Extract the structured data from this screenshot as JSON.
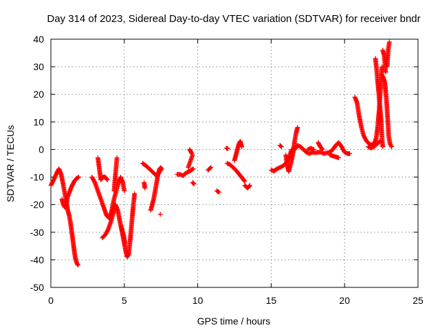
{
  "chart_data": {
    "type": "scatter",
    "title": "Day 314 of 2023, Sidereal Day-to-day VTEC variation (SDTVAR) for receiver bndr",
    "xlabel": "GPS time / hours",
    "ylabel": "SDTVAR / TECUs",
    "xlim": [
      0,
      25
    ],
    "ylim": [
      -50,
      40
    ],
    "xticks": [
      0,
      5,
      10,
      15,
      20,
      25
    ],
    "yticks": [
      -50,
      -40,
      -30,
      -20,
      -10,
      0,
      10,
      20,
      30,
      40
    ],
    "xtick_labels": [
      "0",
      "5",
      "10",
      "15",
      "20",
      "25"
    ],
    "ytick_labels": [
      "-50",
      "-40",
      "-30",
      "-20",
      "-10",
      "0",
      "10",
      "20",
      "30",
      "40"
    ],
    "grid": true,
    "marker": "plus",
    "color": "#ff0000",
    "series": [
      {
        "name": "bndr",
        "segments": [
          [
            [
              0.0,
              -13
            ],
            [
              0.2,
              -11
            ],
            [
              0.4,
              -8.5
            ],
            [
              0.55,
              -7
            ],
            [
              0.7,
              -9
            ],
            [
              0.85,
              -13
            ],
            [
              0.95,
              -16
            ],
            [
              1.05,
              -19
            ],
            [
              1.15,
              -22
            ],
            [
              1.25,
              -24
            ],
            [
              1.35,
              -27
            ],
            [
              1.45,
              -31
            ],
            [
              1.55,
              -35
            ],
            [
              1.65,
              -39
            ],
            [
              1.75,
              -41
            ],
            [
              1.85,
              -42
            ]
          ],
          [
            [
              0.75,
              -18
            ],
            [
              0.85,
              -20
            ],
            [
              0.95,
              -21
            ],
            [
              1.05,
              -20
            ],
            [
              1.15,
              -17
            ],
            [
              1.3,
              -15
            ],
            [
              1.45,
              -13
            ],
            [
              1.6,
              -11.5
            ],
            [
              1.75,
              -10.5
            ],
            [
              1.9,
              -10
            ]
          ],
          [
            [
              2.8,
              -10
            ],
            [
              3.0,
              -12
            ],
            [
              3.2,
              -15
            ],
            [
              3.4,
              -18
            ],
            [
              3.6,
              -21
            ],
            [
              3.8,
              -24
            ],
            [
              4.0,
              -25
            ],
            [
              4.15,
              -22
            ],
            [
              4.3,
              -18
            ],
            [
              4.45,
              -15
            ],
            [
              4.6,
              -12
            ],
            [
              4.75,
              -10
            ],
            [
              4.9,
              -12
            ],
            [
              5.0,
              -15
            ]
          ],
          [
            [
              3.2,
              -3
            ],
            [
              3.3,
              -7
            ],
            [
              3.4,
              -11
            ],
            [
              3.55,
              -10
            ],
            [
              3.7,
              -10
            ],
            [
              3.85,
              -11
            ]
          ],
          [
            [
              3.5,
              -32
            ],
            [
              3.7,
              -31
            ],
            [
              3.9,
              -29
            ],
            [
              4.1,
              -26
            ],
            [
              4.25,
              -23
            ],
            [
              4.4,
              -20
            ],
            [
              4.55,
              -22
            ],
            [
              4.7,
              -26
            ],
            [
              4.85,
              -30
            ],
            [
              5.0,
              -34
            ],
            [
              5.1,
              -37
            ],
            [
              5.2,
              -39
            ],
            [
              5.3,
              -38
            ],
            [
              5.4,
              -33
            ],
            [
              5.5,
              -27
            ],
            [
              5.6,
              -21
            ],
            [
              5.7,
              -16
            ]
          ],
          [
            [
              4.3,
              -15
            ],
            [
              4.4,
              -9
            ],
            [
              4.5,
              -3
            ]
          ],
          [
            [
              4.8,
              -28
            ],
            [
              4.95,
              -31
            ],
            [
              5.05,
              -34
            ]
          ],
          [
            [
              6.25,
              -5
            ],
            [
              6.5,
              -6
            ],
            [
              6.7,
              -7
            ],
            [
              6.9,
              -8
            ],
            [
              7.1,
              -9
            ],
            [
              7.25,
              -9.5
            ],
            [
              7.4,
              -8
            ],
            [
              7.55,
              -7
            ]
          ],
          [
            [
              6.35,
              -12
            ],
            [
              6.4,
              -14
            ]
          ],
          [
            [
              6.8,
              -22
            ],
            [
              6.9,
              -20
            ],
            [
              7.0,
              -18
            ],
            [
              7.1,
              -15
            ],
            [
              7.2,
              -12
            ],
            [
              7.3,
              -9
            ],
            [
              7.4,
              -7
            ],
            [
              7.5,
              -6.5
            ]
          ],
          [
            [
              7.45,
              -23.5
            ]
          ],
          [
            [
              8.6,
              -9
            ],
            [
              8.8,
              -9
            ],
            [
              9.0,
              -9.5
            ],
            [
              9.2,
              -8.5
            ],
            [
              9.4,
              -8
            ],
            [
              9.55,
              -7.5
            ],
            [
              9.7,
              -7
            ]
          ],
          [
            [
              9.35,
              -6.5
            ],
            [
              9.45,
              -5
            ],
            [
              9.55,
              -3.5
            ],
            [
              9.65,
              -2
            ]
          ],
          [
            [
              9.45,
              0
            ],
            [
              9.6,
              -1.5
            ]
          ],
          [
            [
              9.65,
              -12
            ],
            [
              9.75,
              -12.5
            ]
          ],
          [
            [
              10.7,
              -7.5
            ],
            [
              10.8,
              -7
            ],
            [
              10.9,
              -6.5
            ]
          ],
          [
            [
              11.3,
              -15
            ],
            [
              11.45,
              -15.5
            ]
          ],
          [
            [
              11.95,
              0.5
            ],
            [
              12.05,
              0.3
            ]
          ],
          [
            [
              12.0,
              -5
            ],
            [
              12.2,
              -5.5
            ],
            [
              12.4,
              -6.5
            ],
            [
              12.6,
              -7.5
            ],
            [
              12.75,
              -8.5
            ],
            [
              12.9,
              -9.5
            ],
            [
              13.05,
              -10.5
            ],
            [
              13.2,
              -11.5
            ]
          ],
          [
            [
              12.5,
              -4
            ],
            [
              12.6,
              -2
            ],
            [
              12.7,
              0
            ],
            [
              12.8,
              2
            ],
            [
              12.9,
              3
            ],
            [
              13.0,
              1
            ]
          ],
          [
            [
              13.2,
              -13
            ],
            [
              13.4,
              -14
            ],
            [
              13.55,
              -13
            ]
          ],
          [
            [
              15.0,
              -7.5
            ],
            [
              15.2,
              -7.8
            ],
            [
              15.4,
              -7
            ],
            [
              15.6,
              -6.5
            ],
            [
              15.8,
              -6
            ],
            [
              16.0,
              -5
            ],
            [
              16.2,
              -3
            ],
            [
              16.4,
              0
            ]
          ],
          [
            [
              15.6,
              1.5
            ],
            [
              15.7,
              1.0
            ]
          ],
          [
            [
              16.0,
              -2
            ],
            [
              16.1,
              -6
            ],
            [
              16.2,
              -8
            ],
            [
              16.35,
              -5
            ],
            [
              16.5,
              -1
            ],
            [
              16.6,
              3
            ],
            [
              16.7,
              6
            ],
            [
              16.8,
              8
            ]
          ],
          [
            [
              16.6,
              0
            ],
            [
              16.8,
              1.5
            ],
            [
              17.0,
              1
            ],
            [
              17.2,
              0
            ],
            [
              17.4,
              -1
            ],
            [
              17.6,
              -1.5
            ],
            [
              17.8,
              -1
            ],
            [
              18.0,
              -1.2
            ],
            [
              18.2,
              -1
            ],
            [
              18.4,
              -1
            ],
            [
              18.6,
              -1.5
            ],
            [
              18.8,
              -1.2
            ],
            [
              19.0,
              -1
            ],
            [
              19.2,
              0
            ],
            [
              19.4,
              1.5
            ],
            [
              19.6,
              2.5
            ],
            [
              19.8,
              1
            ],
            [
              20.0,
              -1
            ],
            [
              20.2,
              -1.5
            ],
            [
              20.35,
              -1.5
            ]
          ],
          [
            [
              17.5,
              0
            ],
            [
              17.7,
              0.5
            ],
            [
              17.9,
              0
            ]
          ],
          [
            [
              18.2,
              2.5
            ],
            [
              18.35,
              1
            ],
            [
              18.5,
              0
            ]
          ],
          [
            [
              19.0,
              -2
            ],
            [
              19.3,
              -2.5
            ],
            [
              19.6,
              -3
            ]
          ],
          [
            [
              20.7,
              19
            ],
            [
              20.85,
              17
            ],
            [
              21.0,
              12
            ],
            [
              21.15,
              8
            ],
            [
              21.3,
              5
            ],
            [
              21.5,
              3
            ],
            [
              21.7,
              2
            ],
            [
              21.9,
              1.5
            ],
            [
              22.0,
              2
            ],
            [
              22.15,
              4
            ],
            [
              22.25,
              8
            ],
            [
              22.35,
              14
            ],
            [
              22.45,
              22
            ],
            [
              22.55,
              30
            ]
          ],
          [
            [
              22.6,
              36
            ],
            [
              22.7,
              34
            ],
            [
              22.8,
              28
            ]
          ],
          [
            [
              22.9,
              30
            ],
            [
              22.97,
              36
            ],
            [
              23.05,
              39
            ]
          ],
          [
            [
              22.1,
              33
            ],
            [
              22.2,
              28
            ],
            [
              22.3,
              22
            ],
            [
              22.4,
              16
            ],
            [
              22.5,
              10
            ],
            [
              22.55,
              4
            ],
            [
              22.6,
              1
            ]
          ],
          [
            [
              22.55,
              27
            ],
            [
              22.65,
              26
            ],
            [
              22.75,
              24
            ],
            [
              22.85,
              18
            ],
            [
              22.95,
              10
            ],
            [
              23.0,
              5
            ],
            [
              23.1,
              2
            ],
            [
              23.2,
              1
            ]
          ],
          [
            [
              21.6,
              1
            ],
            [
              21.8,
              0.5
            ],
            [
              22.0,
              1
            ],
            [
              22.2,
              2
            ],
            [
              22.4,
              3
            ]
          ]
        ]
      }
    ]
  }
}
